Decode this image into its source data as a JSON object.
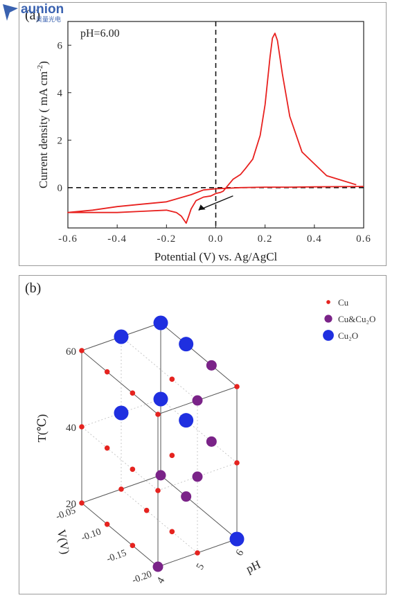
{
  "chart_data": [
    {
      "type": "line",
      "panel_label": "(a)",
      "annotation": "pH=6.00",
      "xlabel": "Potential (V)  vs. Ag/AgCl",
      "ylabel": "Current density ( mA cm",
      "ylabel_sup": "-2",
      "ylabel_close": ")",
      "xlim": [
        -0.6,
        0.6
      ],
      "ylim": [
        -1.7,
        7.0
      ],
      "x_ticks": [
        "-0.6",
        "-0.4",
        "-0.2",
        "0.0",
        "0.2",
        "0.4",
        "0.6"
      ],
      "x_tick_values": [
        -0.6,
        -0.4,
        -0.2,
        0.0,
        0.2,
        0.4,
        0.6
      ],
      "y_ticks": [
        "0",
        "2",
        "4",
        "6"
      ],
      "y_tick_values": [
        0,
        2,
        4,
        6
      ],
      "line_color": "#e8201e",
      "series": [
        {
          "x": [
            0.57,
            0.45,
            0.35,
            0.3,
            0.27,
            0.25,
            0.24,
            0.23,
            0.22,
            0.2,
            0.18,
            0.15,
            0.12,
            0.1,
            0.07,
            0.05,
            0.03,
            0.02,
            0.0,
            -0.02,
            -0.05,
            -0.08,
            -0.1,
            -0.11,
            -0.12,
            -0.14,
            -0.16,
            -0.2,
            -0.3,
            -0.4,
            -0.5,
            -0.6,
            -0.5,
            -0.4,
            -0.3,
            -0.2,
            -0.1,
            -0.05,
            0.0,
            0.1,
            0.2,
            0.3,
            0.4,
            0.5,
            0.6
          ],
          "y": [
            0.12,
            0.5,
            1.5,
            3.0,
            4.8,
            6.2,
            6.5,
            6.3,
            5.5,
            3.5,
            2.2,
            1.2,
            0.8,
            0.55,
            0.35,
            0.1,
            -0.15,
            -0.2,
            -0.25,
            -0.35,
            -0.4,
            -0.55,
            -0.9,
            -1.2,
            -1.5,
            -1.2,
            -1.05,
            -0.95,
            -1.0,
            -1.05,
            -1.05,
            -1.05,
            -0.95,
            -0.8,
            -0.7,
            -0.6,
            -0.3,
            -0.1,
            -0.05,
            0.0,
            0.02,
            0.02,
            0.03,
            0.04,
            0.05
          ]
        }
      ]
    },
    {
      "type": "scatter",
      "panel_label": "(b)",
      "xlabel": "pH",
      "ylabel": "V(V)",
      "zlabel": "T(℃)",
      "x_ticks": [
        "4",
        "5",
        "6"
      ],
      "y_ticks": [
        "-0.05",
        "-0.10",
        "-0.15",
        "-0.20"
      ],
      "z_ticks": [
        "20",
        "40",
        "60"
      ],
      "legend_position": "top-right",
      "series": [
        {
          "name": "Cu",
          "color": "#e5231f",
          "points": [
            [
              4,
              -0.2,
              20
            ],
            [
              5,
              -0.2,
              20
            ],
            [
              6,
              -0.2,
              20
            ],
            [
              4,
              -0.15,
              20
            ],
            [
              5,
              -0.15,
              20
            ],
            [
              4,
              -0.1,
              20
            ],
            [
              5,
              -0.1,
              20
            ],
            [
              4,
              -0.05,
              20
            ],
            [
              5,
              -0.05,
              20
            ],
            [
              6,
              -0.05,
              20
            ],
            [
              4,
              -0.05,
              40
            ],
            [
              4,
              -0.1,
              40
            ],
            [
              4,
              -0.15,
              40
            ],
            [
              5,
              -0.15,
              40
            ],
            [
              6,
              -0.2,
              40
            ],
            [
              4,
              -0.2,
              40
            ],
            [
              4,
              -0.05,
              60
            ],
            [
              4,
              -0.1,
              60
            ],
            [
              4,
              -0.15,
              60
            ],
            [
              5,
              -0.15,
              60
            ],
            [
              6,
              -0.2,
              60
            ],
            [
              4,
              -0.2,
              60
            ]
          ]
        },
        {
          "name": "Cu&Cu₂O",
          "color": "#7a2388",
          "points": [
            [
              4,
              -0.2,
              20
            ],
            [
              6,
              -0.05,
              20
            ],
            [
              6,
              -0.1,
              20
            ],
            [
              5,
              -0.2,
              40
            ],
            [
              6,
              -0.15,
              40
            ],
            [
              5,
              -0.2,
              60
            ],
            [
              6,
              -0.15,
              60
            ]
          ]
        },
        {
          "name": "Cu₂O",
          "color": "#1f2fe0",
          "points": [
            [
              6,
              -0.2,
              20
            ],
            [
              5,
              -0.05,
              40
            ],
            [
              6,
              -0.05,
              40
            ],
            [
              6,
              -0.1,
              40
            ],
            [
              5,
              -0.05,
              60
            ],
            [
              6,
              -0.05,
              60
            ],
            [
              6,
              -0.1,
              60
            ]
          ]
        }
      ]
    }
  ],
  "watermark": {
    "text": "aunion",
    "sub": "昊量光电"
  }
}
